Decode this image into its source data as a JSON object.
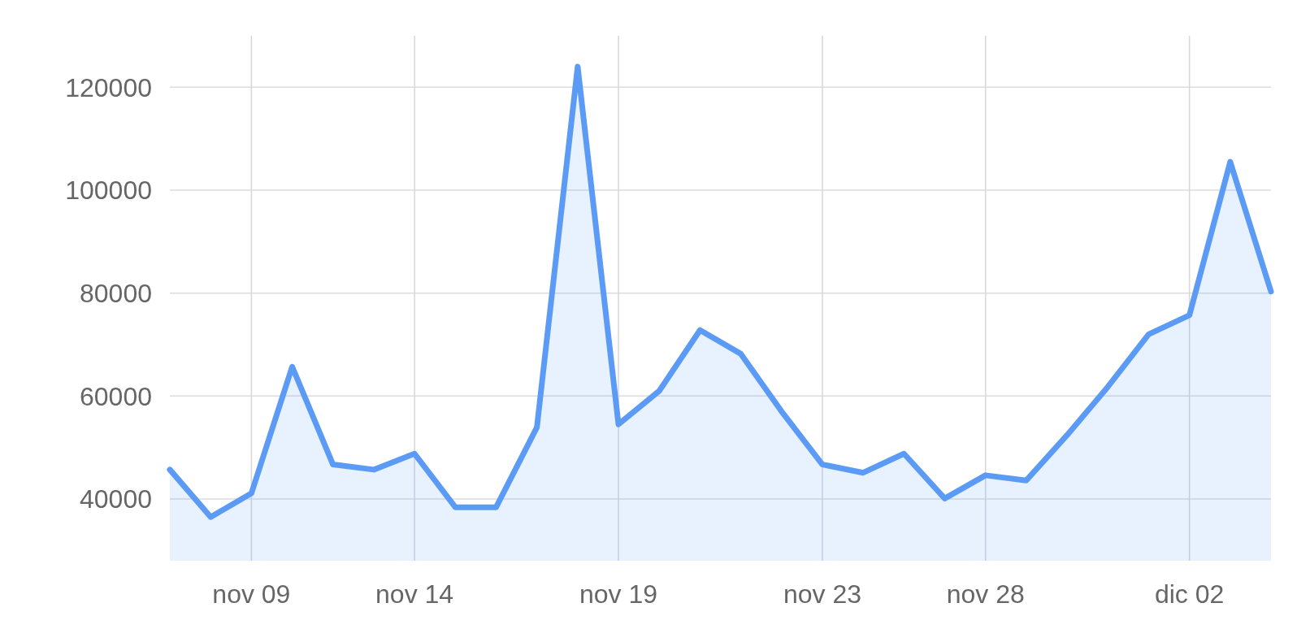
{
  "chart_data": {
    "type": "area",
    "categories": [
      null,
      null,
      "nov 09",
      null,
      null,
      null,
      "nov 14",
      null,
      null,
      null,
      null,
      "nov 19",
      null,
      null,
      null,
      null,
      "nov 23",
      null,
      null,
      null,
      "nov 28",
      null,
      null,
      null,
      null,
      "dic 02",
      null,
      null
    ],
    "series": [
      {
        "color": "#5b9bf5",
        "values": [
          45700,
          36500,
          41100,
          65700,
          46700,
          45700,
          48800,
          38400,
          38400,
          53900,
          124000,
          54500,
          61000,
          72800,
          68200,
          57000,
          46700,
          45100,
          48800,
          40100,
          44600,
          43600,
          52400,
          61800,
          72000,
          75700,
          105500,
          80300
        ]
      }
    ],
    "ylim": [
      28000,
      130000
    ],
    "yticks": [
      40000,
      60000,
      80000,
      100000,
      120000
    ],
    "grid": true
  }
}
